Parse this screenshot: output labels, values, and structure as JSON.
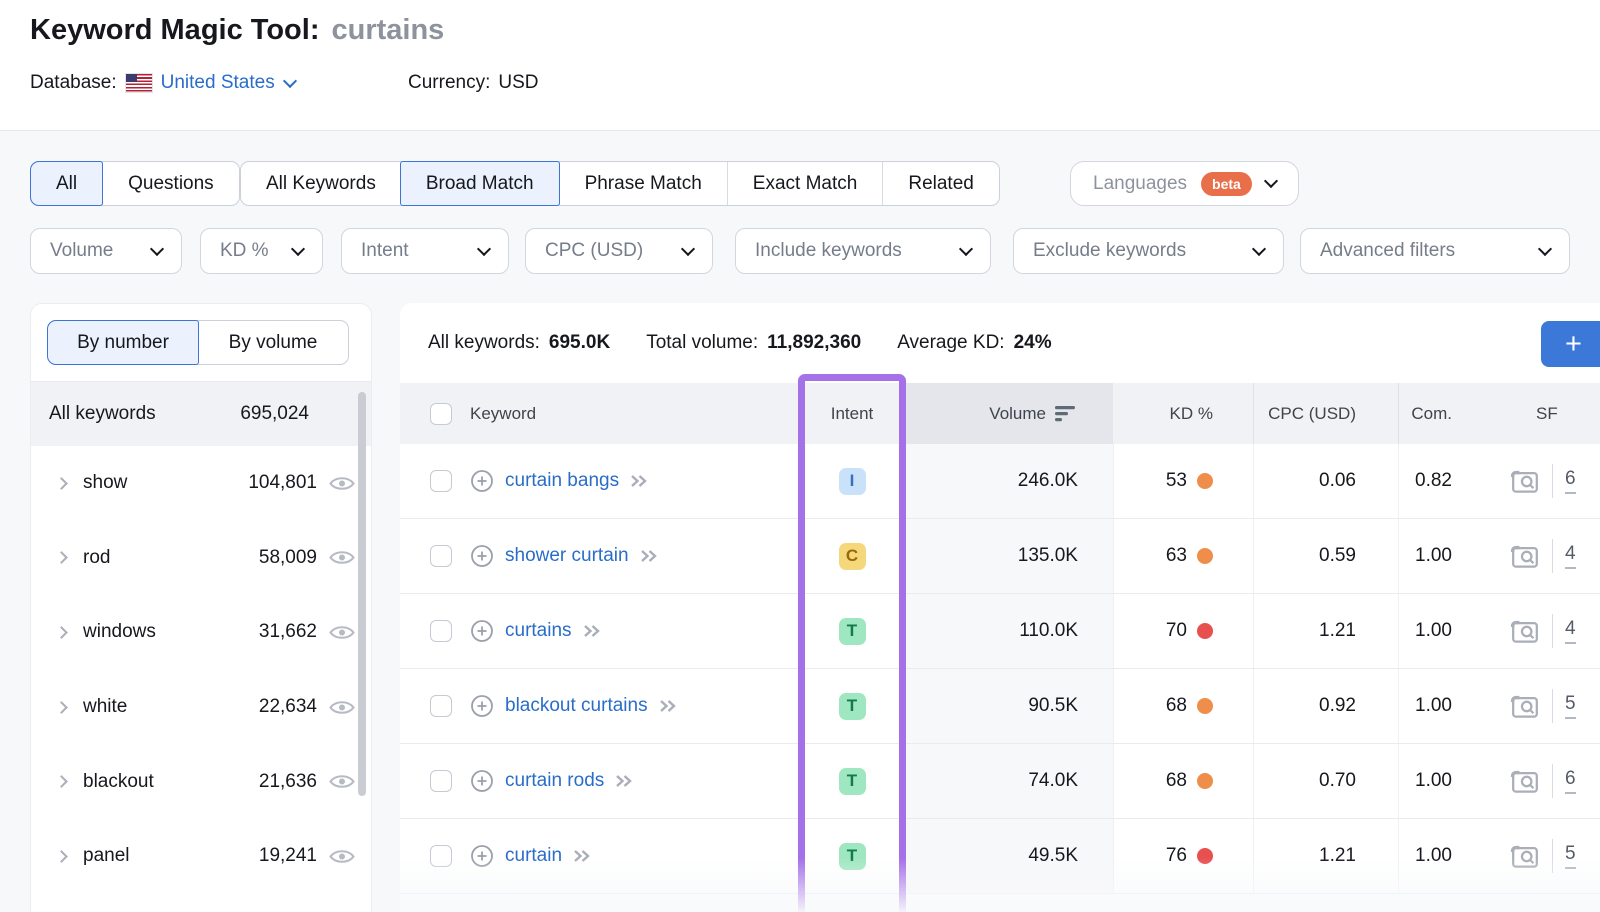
{
  "header": {
    "title": "Keyword Magic Tool:",
    "query": "curtains",
    "database_label": "Database:",
    "database_value": "United States",
    "currency_label": "Currency:",
    "currency_value": "USD"
  },
  "tabs": {
    "group1": [
      {
        "label": "All",
        "selected": true
      },
      {
        "label": "Questions",
        "selected": false
      }
    ],
    "group2": [
      {
        "label": "All Keywords",
        "selected": false
      },
      {
        "label": "Broad Match",
        "selected": true
      },
      {
        "label": "Phrase Match",
        "selected": false
      },
      {
        "label": "Exact Match",
        "selected": false
      },
      {
        "label": "Related",
        "selected": false
      }
    ],
    "languages": {
      "label": "Languages",
      "badge": "beta"
    }
  },
  "filters": [
    "Volume",
    "KD %",
    "Intent",
    "CPC (USD)",
    "Include keywords",
    "Exclude keywords",
    "Advanced filters"
  ],
  "sidebar": {
    "toggle": [
      {
        "label": "By number",
        "selected": true
      },
      {
        "label": "By volume",
        "selected": false
      }
    ],
    "all_row": {
      "label": "All keywords",
      "value": "695,024"
    },
    "items": [
      {
        "label": "show",
        "value": "104,801"
      },
      {
        "label": "rod",
        "value": "58,009"
      },
      {
        "label": "windows",
        "value": "31,662"
      },
      {
        "label": "white",
        "value": "22,634"
      },
      {
        "label": "blackout",
        "value": "21,636"
      },
      {
        "label": "panel",
        "value": "19,241"
      }
    ]
  },
  "stats": {
    "all_keywords_label": "All keywords:",
    "all_keywords_value": "695.0K",
    "total_volume_label": "Total volume:",
    "total_volume_value": "11,892,360",
    "avg_kd_label": "Average KD:",
    "avg_kd_value": "24%",
    "add_button": "+"
  },
  "table": {
    "headers": {
      "keyword": "Keyword",
      "intent": "Intent",
      "volume": "Volume",
      "kd": "KD %",
      "cpc": "CPC (USD)",
      "com": "Com.",
      "sf": "SF"
    },
    "rows": [
      {
        "keyword": "curtain bangs",
        "intent": "I",
        "volume": "246.0K",
        "kd": "53",
        "kd_level": "orange",
        "cpc": "0.06",
        "com": "0.82",
        "sf": "6"
      },
      {
        "keyword": "shower curtain",
        "intent": "C",
        "volume": "135.0K",
        "kd": "63",
        "kd_level": "orange",
        "cpc": "0.59",
        "com": "1.00",
        "sf": "4"
      },
      {
        "keyword": "curtains",
        "intent": "T",
        "volume": "110.0K",
        "kd": "70",
        "kd_level": "red",
        "cpc": "1.21",
        "com": "1.00",
        "sf": "4"
      },
      {
        "keyword": "blackout curtains",
        "intent": "T",
        "volume": "90.5K",
        "kd": "68",
        "kd_level": "orange",
        "cpc": "0.92",
        "com": "1.00",
        "sf": "5"
      },
      {
        "keyword": "curtain rods",
        "intent": "T",
        "volume": "74.0K",
        "kd": "68",
        "kd_level": "orange",
        "cpc": "0.70",
        "com": "1.00",
        "sf": "6"
      },
      {
        "keyword": "curtain",
        "intent": "T",
        "volume": "49.5K",
        "kd": "76",
        "kd_level": "red",
        "cpc": "1.21",
        "com": "1.00",
        "sf": "5"
      }
    ]
  },
  "colors": {
    "accent_blue": "#3c74d9",
    "link_blue": "#2a6dc9",
    "highlight_purple": "#a571e8",
    "beta_orange": "#e96f4b",
    "kd_orange": "#ef8e4b",
    "kd_red": "#e85050",
    "intent_informational_bg": "#c9e2f9",
    "intent_commercial_bg": "#f5d87c",
    "intent_transactional_bg": "#9fe7c0"
  }
}
